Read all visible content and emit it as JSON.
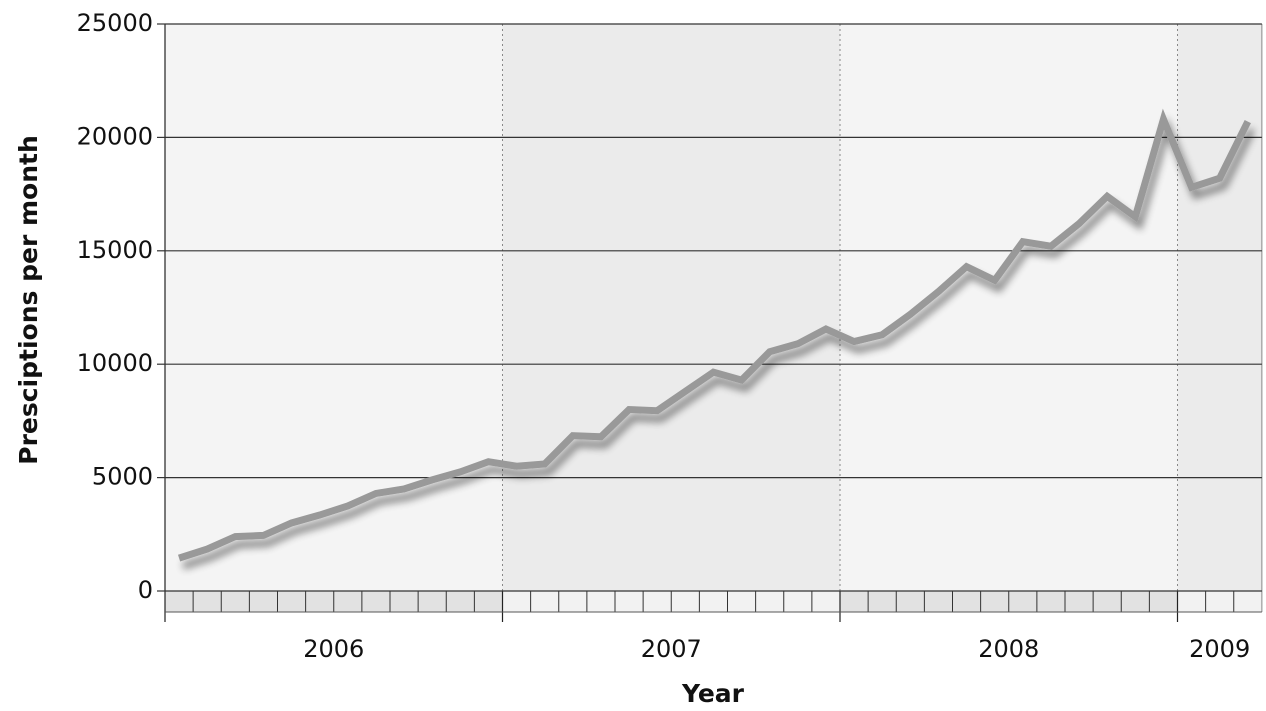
{
  "chart_data": {
    "type": "line",
    "y_label": "Presciptions per month",
    "x_label": "Year",
    "x_year_labels": [
      "2006",
      "2007",
      "2008",
      "2009"
    ],
    "categories": [
      null,
      null,
      null,
      null,
      null,
      null,
      null,
      null,
      null,
      null,
      null,
      null,
      null,
      null,
      null,
      null,
      null,
      null,
      null,
      null,
      null,
      null,
      null,
      null,
      null,
      null,
      null,
      null,
      null,
      null,
      null,
      null,
      null,
      null,
      null,
      null,
      null,
      null,
      null
    ],
    "series": [
      {
        "color": "#999999",
        "values": [
          1450,
          1850,
          2400,
          2450,
          3000,
          3350,
          3750,
          4300,
          4500,
          4900,
          5250,
          5700,
          5500,
          5600,
          6850,
          6800,
          8000,
          7950,
          8800,
          9650,
          9300,
          10550,
          10900,
          11550,
          11000,
          11300,
          12200,
          13200,
          14300,
          13700,
          15400,
          15200,
          16200,
          17400,
          16500,
          20800,
          17800,
          18200,
          20700
        ]
      }
    ],
    "ylim": [
      0,
      25000
    ],
    "yticks": [
      0,
      5000,
      10000,
      15000,
      20000,
      25000
    ],
    "grid": true
  }
}
